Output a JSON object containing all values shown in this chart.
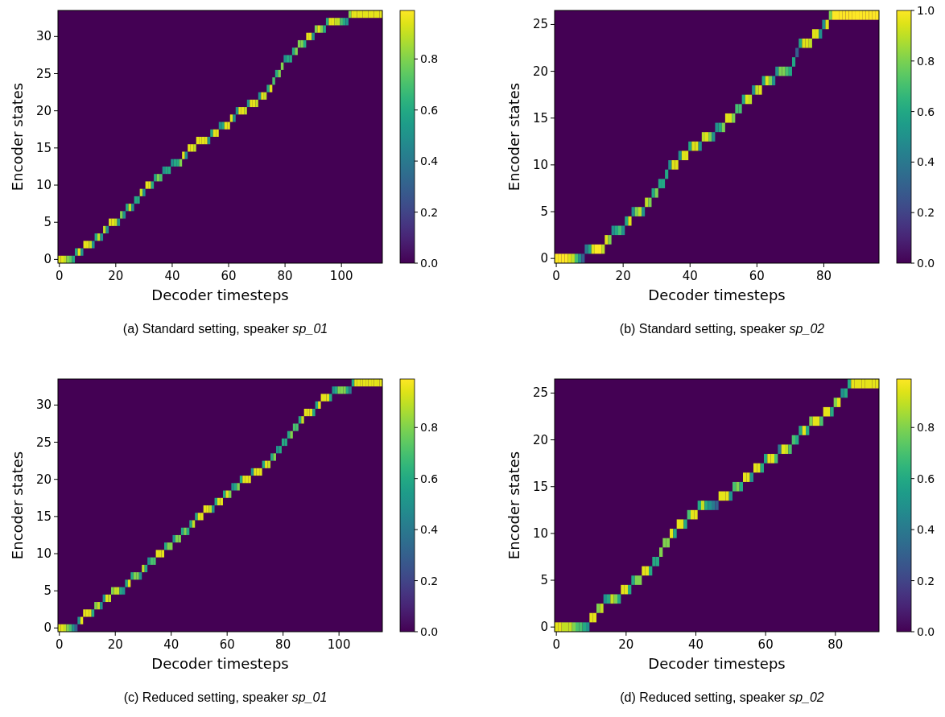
{
  "chart_data": [
    {
      "type": "scatter",
      "marker": "square",
      "xlabel": "Decoder timesteps",
      "ylabel": "Encoder states",
      "annotations": [
        "(a) Standard setting, speaker sp_01"
      ],
      "xlim": [
        -0.5,
        114.5
      ],
      "ylim": [
        -0.5,
        33.5
      ],
      "xticks": [
        0,
        20,
        40,
        60,
        80,
        100
      ],
      "yticks": [
        0,
        5,
        10,
        15,
        20,
        25,
        30
      ],
      "clim": [
        0,
        0.99
      ],
      "cticks": [
        {
          "value": 0,
          "label": "0.0"
        },
        {
          "value": 0.2,
          "label": "0.2"
        },
        {
          "value": 0.4,
          "label": "0.4"
        },
        {
          "value": 0.6,
          "label": "0.6"
        },
        {
          "value": 0.8,
          "label": "0.8"
        }
      ],
      "x": [
        0,
        1,
        2,
        3,
        4,
        5,
        6,
        7,
        8,
        9,
        10,
        11,
        12,
        13,
        14,
        15,
        16,
        17,
        18,
        19,
        20,
        21,
        22,
        23,
        24,
        25,
        26,
        27,
        28,
        29,
        30,
        31,
        32,
        33,
        34,
        35,
        36,
        37,
        38,
        39,
        40,
        41,
        42,
        43,
        44,
        45,
        46,
        47,
        48,
        49,
        50,
        51,
        52,
        53,
        54,
        55,
        56,
        57,
        58,
        59,
        60,
        61,
        62,
        63,
        64,
        65,
        66,
        67,
        68,
        69,
        70,
        71,
        72,
        73,
        74,
        75,
        76,
        77,
        78,
        79,
        80,
        81,
        82,
        83,
        84,
        85,
        86,
        87,
        88,
        89,
        90,
        91,
        92,
        93,
        94,
        95,
        96,
        97,
        98,
        99,
        100,
        101,
        102,
        103,
        104,
        105,
        106,
        107,
        108,
        109,
        110,
        111,
        112,
        113,
        114
      ],
      "values": [
        0,
        0,
        0,
        0,
        0,
        0,
        1,
        1,
        1,
        2,
        2,
        2,
        2,
        3,
        3,
        3,
        4,
        4,
        5,
        5,
        5,
        5,
        6,
        6,
        7,
        7,
        7,
        8,
        8,
        9,
        9,
        10,
        10,
        10,
        11,
        11,
        11,
        12,
        12,
        12,
        13,
        13,
        13,
        13,
        14,
        14,
        15,
        15,
        15,
        16,
        16,
        16,
        16,
        16,
        17,
        17,
        17,
        18,
        18,
        18,
        18,
        19,
        19,
        20,
        20,
        20,
        20,
        21,
        21,
        21,
        21,
        22,
        22,
        22,
        23,
        23,
        24,
        25,
        25,
        26,
        27,
        27,
        27,
        28,
        28,
        29,
        29,
        29,
        30,
        30,
        30,
        31,
        31,
        31,
        31,
        32,
        32,
        32,
        32,
        32,
        32,
        32,
        32,
        33,
        33,
        33,
        33,
        33,
        33,
        33,
        33,
        33,
        33,
        33,
        33
      ],
      "cvalues": [
        0.95,
        0.95,
        0.9,
        0.8,
        0.75,
        0.6,
        0.6,
        0.95,
        0.5,
        0.95,
        0.95,
        0.9,
        0.5,
        0.6,
        0.9,
        0.5,
        0.9,
        0.5,
        0.95,
        0.95,
        0.9,
        0.5,
        0.8,
        0.5,
        0.6,
        0.9,
        0.5,
        0.6,
        0.6,
        0.9,
        0.5,
        0.95,
        0.95,
        0.6,
        0.6,
        0.8,
        0.7,
        0.5,
        0.6,
        0.6,
        0.5,
        0.6,
        0.6,
        0.8,
        0.95,
        0.5,
        0.95,
        0.95,
        0.9,
        0.95,
        0.95,
        0.95,
        0.95,
        0.5,
        0.6,
        0.95,
        0.95,
        0.5,
        0.6,
        0.95,
        0.95,
        0.95,
        0.5,
        0.5,
        0.95,
        0.95,
        0.9,
        0.5,
        0.95,
        0.95,
        0.9,
        0.5,
        0.95,
        0.9,
        0.6,
        0.95,
        0.7,
        0.6,
        0.8,
        0.8,
        0.5,
        0.6,
        0.6,
        0.6,
        0.8,
        0.8,
        0.8,
        0.6,
        0.95,
        0.95,
        0.5,
        0.8,
        0.95,
        0.8,
        0.6,
        0.6,
        0.95,
        0.95,
        0.9,
        0.9,
        0.7,
        0.6,
        0.5,
        0.8,
        0.95,
        0.95,
        0.95,
        0.95,
        0.95,
        0.95,
        0.95,
        0.95,
        0.95,
        0.95,
        0.95
      ]
    },
    {
      "type": "scatter",
      "marker": "square",
      "xlabel": "Decoder timesteps",
      "ylabel": "Encoder states",
      "annotations": [
        "(b) Standard setting, speaker sp_02"
      ],
      "xlim": [
        -0.5,
        96.5
      ],
      "ylim": [
        -0.5,
        26.5
      ],
      "xticks": [
        0,
        20,
        40,
        60,
        80
      ],
      "yticks": [
        0,
        5,
        10,
        15,
        20,
        25
      ],
      "clim": [
        0,
        1
      ],
      "cticks": [
        {
          "value": 0,
          "label": "0.0"
        },
        {
          "value": 0.2,
          "label": "0.2"
        },
        {
          "value": 0.4,
          "label": "0.4"
        },
        {
          "value": 0.6,
          "label": "0.6"
        },
        {
          "value": 0.8,
          "label": "0.8"
        },
        {
          "value": 1,
          "label": "1.0"
        }
      ],
      "x": [
        0,
        1,
        2,
        3,
        4,
        5,
        6,
        7,
        8,
        9,
        10,
        11,
        12,
        13,
        14,
        15,
        16,
        17,
        18,
        19,
        20,
        21,
        22,
        23,
        24,
        25,
        26,
        27,
        28,
        29,
        30,
        31,
        32,
        33,
        34,
        35,
        36,
        37,
        38,
        39,
        40,
        41,
        42,
        43,
        44,
        45,
        46,
        47,
        48,
        49,
        50,
        51,
        52,
        53,
        54,
        55,
        56,
        57,
        58,
        59,
        60,
        61,
        62,
        63,
        64,
        65,
        66,
        67,
        68,
        69,
        70,
        71,
        72,
        73,
        74,
        75,
        76,
        77,
        78,
        79,
        80,
        81,
        82,
        83,
        84,
        85,
        86,
        87,
        88,
        89,
        90,
        91,
        92,
        93,
        94,
        95,
        96
      ],
      "values": [
        0,
        0,
        0,
        0,
        0,
        0,
        0,
        0,
        0,
        1,
        1,
        1,
        1,
        1,
        1,
        2,
        2,
        3,
        3,
        3,
        3,
        4,
        4,
        5,
        5,
        5,
        5,
        6,
        6,
        7,
        7,
        8,
        8,
        9,
        10,
        10,
        10,
        11,
        11,
        11,
        12,
        12,
        12,
        12,
        13,
        13,
        13,
        13,
        14,
        14,
        14,
        15,
        15,
        15,
        16,
        16,
        17,
        17,
        17,
        18,
        18,
        18,
        19,
        19,
        19,
        19,
        20,
        20,
        20,
        20,
        20,
        21,
        22,
        23,
        23,
        23,
        23,
        24,
        24,
        24,
        25,
        25,
        26,
        26,
        26,
        26,
        26,
        26,
        26,
        26,
        26,
        26,
        26,
        26,
        26,
        26,
        26
      ],
      "cvalues": [
        1,
        1,
        1,
        1,
        0.95,
        0.9,
        0.7,
        0.5,
        0.3,
        0.4,
        0.6,
        0.95,
        1,
        1,
        0.9,
        0.95,
        0.8,
        0.5,
        0.6,
        0.7,
        0.5,
        0.6,
        0.95,
        0.5,
        0.8,
        0.9,
        0.5,
        0.9,
        0.8,
        0.6,
        0.8,
        0.6,
        0.6,
        0.6,
        0.5,
        0.95,
        0.95,
        0.5,
        0.95,
        0.95,
        0.6,
        0.95,
        0.95,
        0.5,
        0.9,
        0.95,
        0.8,
        0.5,
        0.5,
        0.6,
        0.8,
        0.95,
        0.95,
        0.8,
        0.7,
        0.7,
        0.6,
        0.95,
        0.9,
        0.5,
        0.9,
        0.95,
        0.6,
        0.95,
        0.8,
        0.5,
        0.5,
        0.8,
        0.8,
        0.7,
        0.6,
        0.6,
        0.3,
        0.6,
        0.95,
        0.95,
        0.9,
        0.95,
        0.95,
        0.5,
        0.5,
        0.95,
        0.8,
        1,
        1,
        1,
        1,
        1,
        1,
        1,
        1,
        1,
        1,
        1,
        1,
        1,
        1
      ]
    },
    {
      "type": "scatter",
      "marker": "square",
      "xlabel": "Decoder timesteps",
      "ylabel": "Encoder states",
      "annotations": [
        "(c) Reduced setting, speaker sp_01"
      ],
      "xlim": [
        -0.5,
        115.5
      ],
      "ylim": [
        -0.5,
        33.5
      ],
      "xticks": [
        0,
        20,
        40,
        60,
        80,
        100
      ],
      "yticks": [
        0,
        5,
        10,
        15,
        20,
        25,
        30
      ],
      "clim": [
        0,
        0.99
      ],
      "cticks": [
        {
          "value": 0,
          "label": "0.0"
        },
        {
          "value": 0.2,
          "label": "0.2"
        },
        {
          "value": 0.4,
          "label": "0.4"
        },
        {
          "value": 0.6,
          "label": "0.6"
        },
        {
          "value": 0.8,
          "label": "0.8"
        }
      ],
      "x": [
        0,
        1,
        2,
        3,
        4,
        5,
        6,
        7,
        8,
        9,
        10,
        11,
        12,
        13,
        14,
        15,
        16,
        17,
        18,
        19,
        20,
        21,
        22,
        23,
        24,
        25,
        26,
        27,
        28,
        29,
        30,
        31,
        32,
        33,
        34,
        35,
        36,
        37,
        38,
        39,
        40,
        41,
        42,
        43,
        44,
        45,
        46,
        47,
        48,
        49,
        50,
        51,
        52,
        53,
        54,
        55,
        56,
        57,
        58,
        59,
        60,
        61,
        62,
        63,
        64,
        65,
        66,
        67,
        68,
        69,
        70,
        71,
        72,
        73,
        74,
        75,
        76,
        77,
        78,
        79,
        80,
        81,
        82,
        83,
        84,
        85,
        86,
        87,
        88,
        89,
        90,
        91,
        92,
        93,
        94,
        95,
        96,
        97,
        98,
        99,
        100,
        101,
        102,
        103,
        104,
        105,
        106,
        107,
        108,
        109,
        110,
        111,
        112,
        113,
        114,
        115
      ],
      "values": [
        0,
        0,
        0,
        0,
        0,
        0,
        0,
        1,
        1,
        2,
        2,
        2,
        2,
        3,
        3,
        3,
        4,
        4,
        4,
        5,
        5,
        5,
        5,
        5,
        6,
        6,
        7,
        7,
        7,
        7,
        8,
        8,
        9,
        9,
        9,
        10,
        10,
        10,
        11,
        11,
        11,
        12,
        12,
        12,
        13,
        13,
        13,
        14,
        14,
        15,
        15,
        15,
        16,
        16,
        16,
        16,
        17,
        17,
        17,
        18,
        18,
        18,
        19,
        19,
        19,
        20,
        20,
        20,
        20,
        21,
        21,
        21,
        21,
        22,
        22,
        22,
        23,
        23,
        24,
        24,
        25,
        25,
        26,
        26,
        27,
        27,
        28,
        28,
        29,
        29,
        29,
        29,
        30,
        30,
        31,
        31,
        31,
        31,
        32,
        32,
        32,
        32,
        32,
        32,
        32,
        33,
        33,
        33,
        33,
        33,
        33,
        33,
        33,
        33,
        33,
        33
      ],
      "cvalues": [
        0.95,
        0.95,
        0.9,
        0.8,
        0.7,
        0.5,
        0.3,
        0.5,
        0.95,
        0.95,
        0.95,
        0.95,
        0.6,
        0.8,
        0.9,
        0.5,
        0.5,
        0.95,
        0.9,
        0.8,
        0.9,
        0.9,
        0.6,
        0.5,
        0.6,
        0.95,
        0.6,
        0.8,
        0.8,
        0.5,
        0.9,
        0.6,
        0.5,
        0.7,
        0.7,
        0.95,
        0.95,
        0.95,
        0.6,
        0.8,
        0.8,
        0.5,
        0.8,
        0.8,
        0.6,
        0.8,
        0.6,
        0.6,
        0.9,
        0.6,
        0.95,
        0.95,
        0.95,
        0.95,
        0.9,
        0.5,
        0.6,
        0.95,
        0.95,
        0.6,
        0.95,
        0.8,
        0.5,
        0.6,
        0.8,
        0.6,
        0.95,
        0.95,
        0.95,
        0.5,
        0.95,
        0.95,
        0.95,
        0.6,
        0.95,
        0.9,
        0.6,
        0.8,
        0.5,
        0.6,
        0.6,
        0.6,
        0.6,
        0.8,
        0.7,
        0.7,
        0.6,
        0.9,
        0.95,
        0.95,
        0.95,
        0.6,
        0.6,
        0.95,
        0.95,
        0.95,
        0.95,
        0.6,
        0.5,
        0.6,
        0.8,
        0.8,
        0.8,
        0.6,
        0.4,
        0.6,
        0.95,
        0.95,
        0.95,
        0.95,
        0.95,
        0.95,
        0.95,
        0.95,
        0.95,
        0.95
      ]
    },
    {
      "type": "scatter",
      "marker": "square",
      "xlabel": "Decoder timesteps",
      "ylabel": "Encoder states",
      "annotations": [
        "(d) Reduced setting, speaker sp_02"
      ],
      "xlim": [
        -0.5,
        92.5
      ],
      "ylim": [
        -0.5,
        26.5
      ],
      "xticks": [
        0,
        20,
        40,
        60,
        80
      ],
      "yticks": [
        0,
        5,
        10,
        15,
        20,
        25
      ],
      "clim": [
        0,
        0.99
      ],
      "cticks": [
        {
          "value": 0,
          "label": "0.0"
        },
        {
          "value": 0.2,
          "label": "0.2"
        },
        {
          "value": 0.4,
          "label": "0.4"
        },
        {
          "value": 0.6,
          "label": "0.6"
        },
        {
          "value": 0.8,
          "label": "0.8"
        }
      ],
      "x": [
        0,
        1,
        2,
        3,
        4,
        5,
        6,
        7,
        8,
        9,
        10,
        11,
        12,
        13,
        14,
        15,
        16,
        17,
        18,
        19,
        20,
        21,
        22,
        23,
        24,
        25,
        26,
        27,
        28,
        29,
        30,
        31,
        32,
        33,
        34,
        35,
        36,
        37,
        38,
        39,
        40,
        41,
        42,
        43,
        44,
        45,
        46,
        47,
        48,
        49,
        50,
        51,
        52,
        53,
        54,
        55,
        56,
        57,
        58,
        59,
        60,
        61,
        62,
        63,
        64,
        65,
        66,
        67,
        68,
        69,
        70,
        71,
        72,
        73,
        74,
        75,
        76,
        77,
        78,
        79,
        80,
        81,
        82,
        83,
        84,
        85,
        86,
        87,
        88,
        89,
        90,
        91,
        92
      ],
      "values": [
        0,
        0,
        0,
        0,
        0,
        0,
        0,
        0,
        0,
        0,
        1,
        1,
        2,
        2,
        3,
        3,
        3,
        3,
        3,
        4,
        4,
        4,
        5,
        5,
        5,
        6,
        6,
        6,
        7,
        7,
        8,
        9,
        9,
        10,
        10,
        11,
        11,
        11,
        12,
        12,
        12,
        13,
        13,
        13,
        13,
        13,
        13,
        14,
        14,
        14,
        14,
        15,
        15,
        15,
        16,
        16,
        16,
        17,
        17,
        17,
        18,
        18,
        18,
        18,
        19,
        19,
        19,
        19,
        20,
        20,
        21,
        21,
        21,
        22,
        22,
        22,
        22,
        23,
        23,
        23,
        24,
        24,
        25,
        25,
        26,
        26,
        26,
        26,
        26,
        26,
        26,
        26,
        26
      ],
      "cvalues": [
        0.95,
        0.95,
        0.9,
        0.9,
        0.9,
        0.8,
        0.7,
        0.7,
        0.6,
        0.5,
        0.95,
        0.95,
        0.8,
        0.9,
        0.5,
        0.6,
        0.9,
        0.8,
        0.6,
        0.95,
        0.95,
        0.6,
        0.6,
        0.8,
        0.8,
        0.95,
        0.95,
        0.6,
        0.6,
        0.6,
        0.8,
        0.8,
        0.8,
        0.95,
        0.6,
        0.95,
        0.95,
        0.6,
        0.7,
        0.95,
        0.95,
        0.6,
        0.9,
        0.6,
        0.5,
        0.4,
        0.3,
        0.95,
        0.95,
        0.95,
        0.5,
        0.7,
        0.8,
        0.6,
        0.95,
        0.95,
        0.5,
        0.95,
        0.95,
        0.6,
        0.6,
        0.95,
        0.95,
        0.7,
        0.4,
        0.95,
        0.9,
        0.7,
        0.7,
        0.6,
        0.6,
        0.95,
        0.6,
        0.8,
        0.95,
        0.95,
        0.7,
        0.95,
        0.95,
        0.6,
        0.8,
        0.95,
        0.5,
        0.6,
        0.6,
        0.95,
        0.95,
        0.95,
        0.95,
        0.95,
        0.95,
        0.95,
        0.95
      ]
    }
  ]
}
